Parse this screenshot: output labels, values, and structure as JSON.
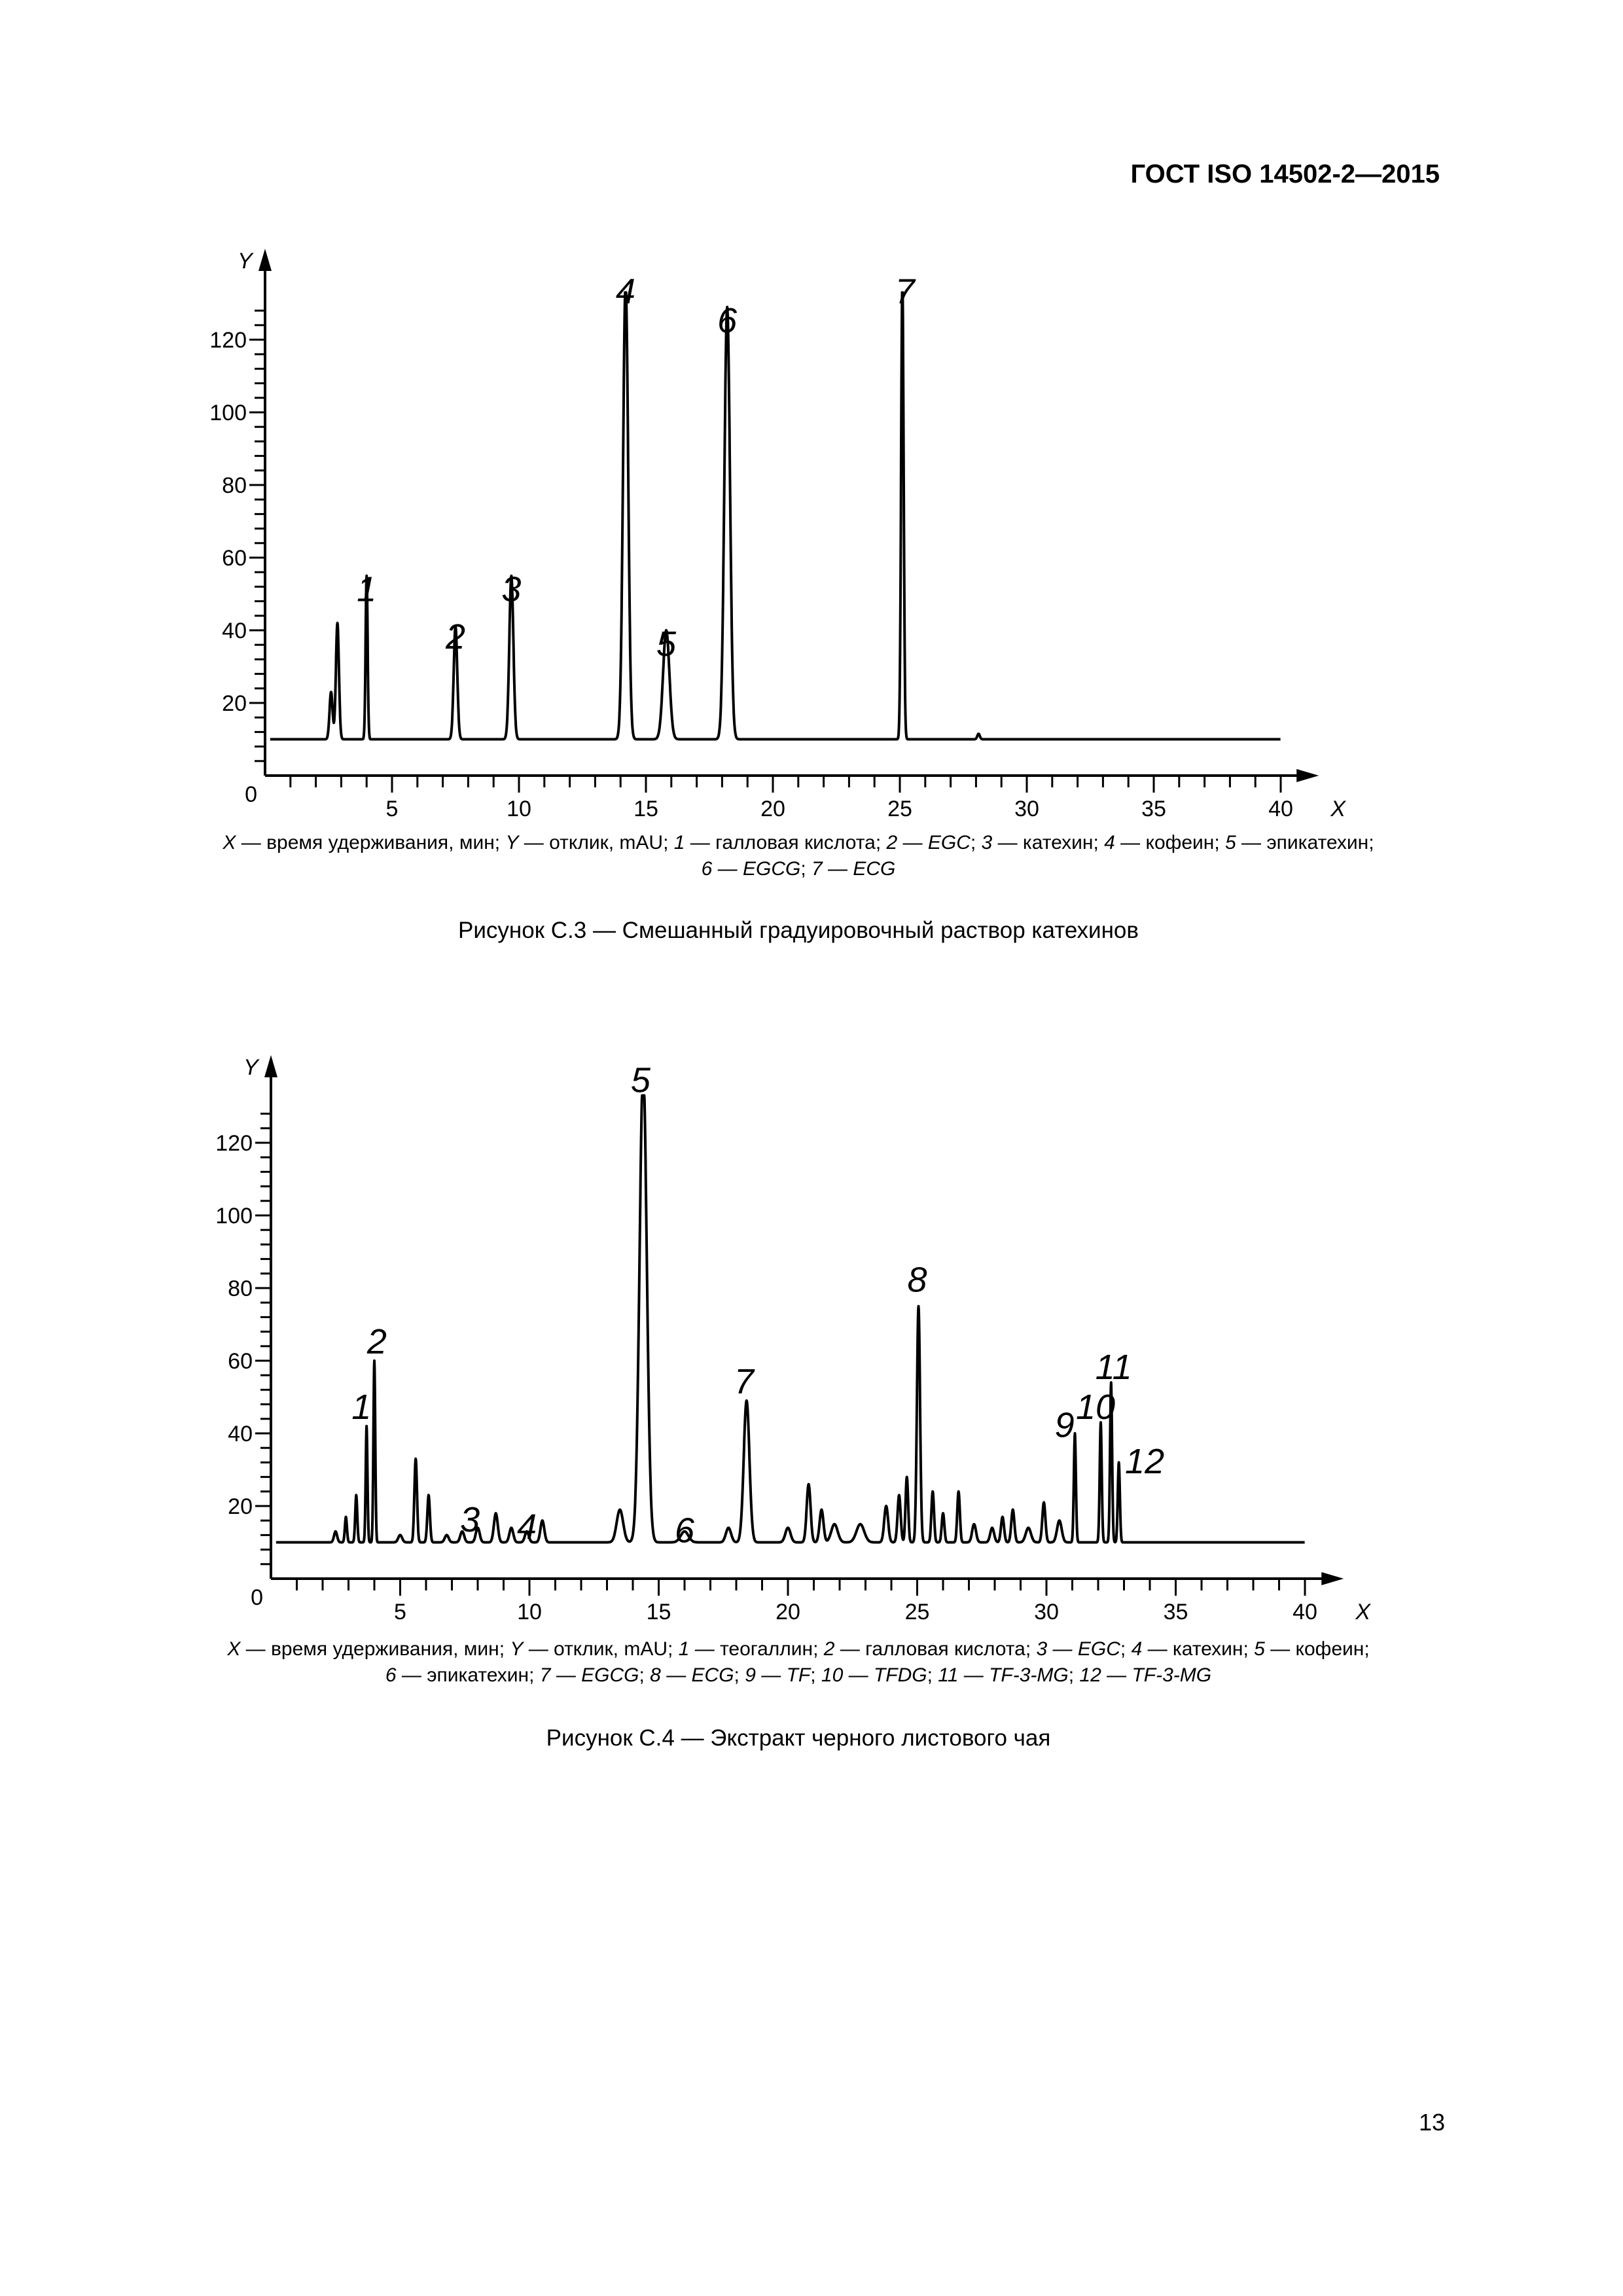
{
  "header": {
    "standard": "ГОСТ ISO 14502-2—2015"
  },
  "page_number": "13",
  "figures": [
    {
      "legend_lines": [
        [
          {
            "t": "X",
            "i": true
          },
          {
            "t": " — время удерживания, мин; ",
            "i": false
          },
          {
            "t": "Y",
            "i": true
          },
          {
            "t": " — отклик, mAU; ",
            "i": false
          },
          {
            "t": "1",
            "i": true
          },
          {
            "t": " — галловая кислота; ",
            "i": false
          },
          {
            "t": "2 — EGC",
            "i": true
          },
          {
            "t": "; ",
            "i": false
          },
          {
            "t": "3",
            "i": true
          },
          {
            "t": " — катехин; ",
            "i": false
          },
          {
            "t": "4",
            "i": true
          },
          {
            "t": " — кофеин; ",
            "i": false
          },
          {
            "t": "5",
            "i": true
          },
          {
            "t": " — эпикатехин;",
            "i": false
          }
        ],
        [
          {
            "t": "6 — EGCG",
            "i": true
          },
          {
            "t": "; ",
            "i": false
          },
          {
            "t": "7 — ECG",
            "i": true
          }
        ]
      ],
      "caption": "Рисунок С.3 — Смешанный градуировочный раствор катехинов",
      "chart_data": {
        "type": "line",
        "xlabel": "X",
        "ylabel": "Y",
        "xlim": [
          0,
          42
        ],
        "ylim": [
          0,
          130
        ],
        "x_ticks": [
          5,
          10,
          15,
          20,
          25,
          30,
          35,
          40
        ],
        "y_ticks": [
          20,
          40,
          60,
          80,
          100,
          120
        ],
        "y_zero_label": "0",
        "baseline": 10,
        "x_range": [
          0.2,
          40
        ],
        "peaks": [
          {
            "x": 2.6,
            "h": 13,
            "w": 0.12
          },
          {
            "x": 2.85,
            "h": 32,
            "w": 0.12
          },
          {
            "x": 4.0,
            "h": 45,
            "w": 0.08,
            "label": "1"
          },
          {
            "x": 7.5,
            "h": 31,
            "w": 0.14,
            "label": "2"
          },
          {
            "x": 9.7,
            "h": 45,
            "w": 0.16,
            "label": "3"
          },
          {
            "x": 14.2,
            "h": 126,
            "w": 0.2,
            "label": "4"
          },
          {
            "x": 15.8,
            "h": 30,
            "w": 0.25,
            "label": "5"
          },
          {
            "x": 18.2,
            "h": 119,
            "w": 0.22,
            "label": "6"
          },
          {
            "x": 25.1,
            "h": 126,
            "w": 0.1,
            "label": "7"
          },
          {
            "x": 28.1,
            "h": 1.5,
            "w": 0.1
          }
        ],
        "peak_labels": [
          {
            "text": "1",
            "x": 4.0,
            "y": 48
          },
          {
            "text": "2",
            "x": 7.5,
            "y": 35
          },
          {
            "text": "3",
            "x": 9.7,
            "y": 48
          },
          {
            "text": "4",
            "x": 14.2,
            "y": 130
          },
          {
            "text": "5",
            "x": 15.8,
            "y": 33
          },
          {
            "text": "6",
            "x": 18.2,
            "y": 122
          },
          {
            "text": "7",
            "x": 25.2,
            "y": 130
          }
        ]
      }
    },
    {
      "legend_lines": [
        [
          {
            "t": "X",
            "i": true
          },
          {
            "t": " — время удерживания, мин; ",
            "i": false
          },
          {
            "t": "Y",
            "i": true
          },
          {
            "t": " — отклик, mAU; ",
            "i": false
          },
          {
            "t": "1",
            "i": true
          },
          {
            "t": " — теогаллин; ",
            "i": false
          },
          {
            "t": "2",
            "i": true
          },
          {
            "t": " — галловая кислота; ",
            "i": false
          },
          {
            "t": "3 — EGC",
            "i": true
          },
          {
            "t": "; ",
            "i": false
          },
          {
            "t": "4",
            "i": true
          },
          {
            "t": " — катехин; ",
            "i": false
          },
          {
            "t": "5",
            "i": true
          },
          {
            "t": " — кофеин;",
            "i": false
          }
        ],
        [
          {
            "t": "6",
            "i": true
          },
          {
            "t": " — эпикатехин; ",
            "i": false
          },
          {
            "t": "7 — EGCG",
            "i": true
          },
          {
            "t": "; ",
            "i": false
          },
          {
            "t": "8 — ECG",
            "i": true
          },
          {
            "t": "; ",
            "i": false
          },
          {
            "t": "9 — TF",
            "i": true
          },
          {
            "t": "; ",
            "i": false
          },
          {
            "t": "10 — TFDG",
            "i": true
          },
          {
            "t": "; ",
            "i": false
          },
          {
            "t": "11 — TF-3-MG",
            "i": true
          },
          {
            "t": "; ",
            "i": false
          },
          {
            "t": "12 — TF-3-MG",
            "i": true
          }
        ]
      ],
      "caption": "Рисунок С.4 — Экстракт черного листового чая",
      "chart_data": {
        "type": "line",
        "xlabel": "X",
        "ylabel": "Y",
        "xlim": [
          0,
          42
        ],
        "ylim": [
          0,
          130
        ],
        "x_ticks": [
          5,
          10,
          15,
          20,
          25,
          30,
          35,
          40
        ],
        "y_ticks": [
          20,
          40,
          60,
          80,
          100,
          120
        ],
        "y_zero_label": "0",
        "baseline": 10,
        "x_range": [
          0.2,
          40
        ],
        "peaks": [
          {
            "x": 2.5,
            "h": 3,
            "w": 0.12
          },
          {
            "x": 2.9,
            "h": 7,
            "w": 0.08
          },
          {
            "x": 3.3,
            "h": 13,
            "w": 0.08
          },
          {
            "x": 3.7,
            "h": 32,
            "w": 0.07,
            "label": "1"
          },
          {
            "x": 4.0,
            "h": 50,
            "w": 0.07,
            "label": "2"
          },
          {
            "x": 5.0,
            "h": 2,
            "w": 0.15
          },
          {
            "x": 5.6,
            "h": 23,
            "w": 0.1
          },
          {
            "x": 6.1,
            "h": 13,
            "w": 0.1
          },
          {
            "x": 6.8,
            "h": 2,
            "w": 0.15
          },
          {
            "x": 7.4,
            "h": 3,
            "w": 0.15,
            "label": "3"
          },
          {
            "x": 8.0,
            "h": 4,
            "w": 0.15
          },
          {
            "x": 8.7,
            "h": 8,
            "w": 0.15
          },
          {
            "x": 9.3,
            "h": 4,
            "w": 0.15
          },
          {
            "x": 9.9,
            "h": 3,
            "w": 0.15,
            "label": "4"
          },
          {
            "x": 10.5,
            "h": 6,
            "w": 0.15
          },
          {
            "x": 13.5,
            "h": 9,
            "w": 0.25
          },
          {
            "x": 14.4,
            "h": 130,
            "w": 0.28,
            "label": "5"
          },
          {
            "x": 16.0,
            "h": 3,
            "w": 0.3,
            "label": "6"
          },
          {
            "x": 17.7,
            "h": 4,
            "w": 0.2
          },
          {
            "x": 18.4,
            "h": 39,
            "w": 0.22,
            "label": "7"
          },
          {
            "x": 20.0,
            "h": 4,
            "w": 0.2
          },
          {
            "x": 20.8,
            "h": 16,
            "w": 0.15
          },
          {
            "x": 21.3,
            "h": 9,
            "w": 0.15
          },
          {
            "x": 21.8,
            "h": 5,
            "w": 0.25
          },
          {
            "x": 22.8,
            "h": 5,
            "w": 0.3
          },
          {
            "x": 23.8,
            "h": 10,
            "w": 0.15
          },
          {
            "x": 24.3,
            "h": 13,
            "w": 0.12
          },
          {
            "x": 24.6,
            "h": 18,
            "w": 0.1
          },
          {
            "x": 25.05,
            "h": 65,
            "w": 0.12,
            "label": "8"
          },
          {
            "x": 25.6,
            "h": 14,
            "w": 0.1
          },
          {
            "x": 26.0,
            "h": 8,
            "w": 0.1
          },
          {
            "x": 26.6,
            "h": 14,
            "w": 0.1
          },
          {
            "x": 27.2,
            "h": 5,
            "w": 0.15
          },
          {
            "x": 27.9,
            "h": 4,
            "w": 0.15
          },
          {
            "x": 28.3,
            "h": 7,
            "w": 0.12
          },
          {
            "x": 28.7,
            "h": 9,
            "w": 0.12
          },
          {
            "x": 29.3,
            "h": 4,
            "w": 0.2
          },
          {
            "x": 29.9,
            "h": 11,
            "w": 0.12
          },
          {
            "x": 30.5,
            "h": 6,
            "w": 0.18
          },
          {
            "x": 31.1,
            "h": 30,
            "w": 0.08,
            "label": "9"
          },
          {
            "x": 32.1,
            "h": 33,
            "w": 0.08,
            "label": "10"
          },
          {
            "x": 32.5,
            "h": 44,
            "w": 0.08,
            "label": "11"
          },
          {
            "x": 32.8,
            "h": 22,
            "w": 0.08,
            "label": "12"
          }
        ],
        "peak_labels": [
          {
            "text": "1",
            "x": 3.5,
            "y": 44
          },
          {
            "text": "2",
            "x": 4.1,
            "y": 62
          },
          {
            "text": "3",
            "x": 7.7,
            "y": 13
          },
          {
            "text": "4",
            "x": 9.9,
            "y": 11
          },
          {
            "text": "5",
            "x": 14.3,
            "y": 134
          },
          {
            "text": "6",
            "x": 16.0,
            "y": 10
          },
          {
            "text": "7",
            "x": 18.3,
            "y": 51
          },
          {
            "text": "8",
            "x": 25.0,
            "y": 79
          },
          {
            "text": "9",
            "x": 30.7,
            "y": 39
          },
          {
            "text": "10",
            "x": 31.9,
            "y": 44
          },
          {
            "text": "11",
            "x": 32.6,
            "y": 55
          },
          {
            "text": "12",
            "x": 33.8,
            "y": 29
          }
        ]
      }
    }
  ]
}
